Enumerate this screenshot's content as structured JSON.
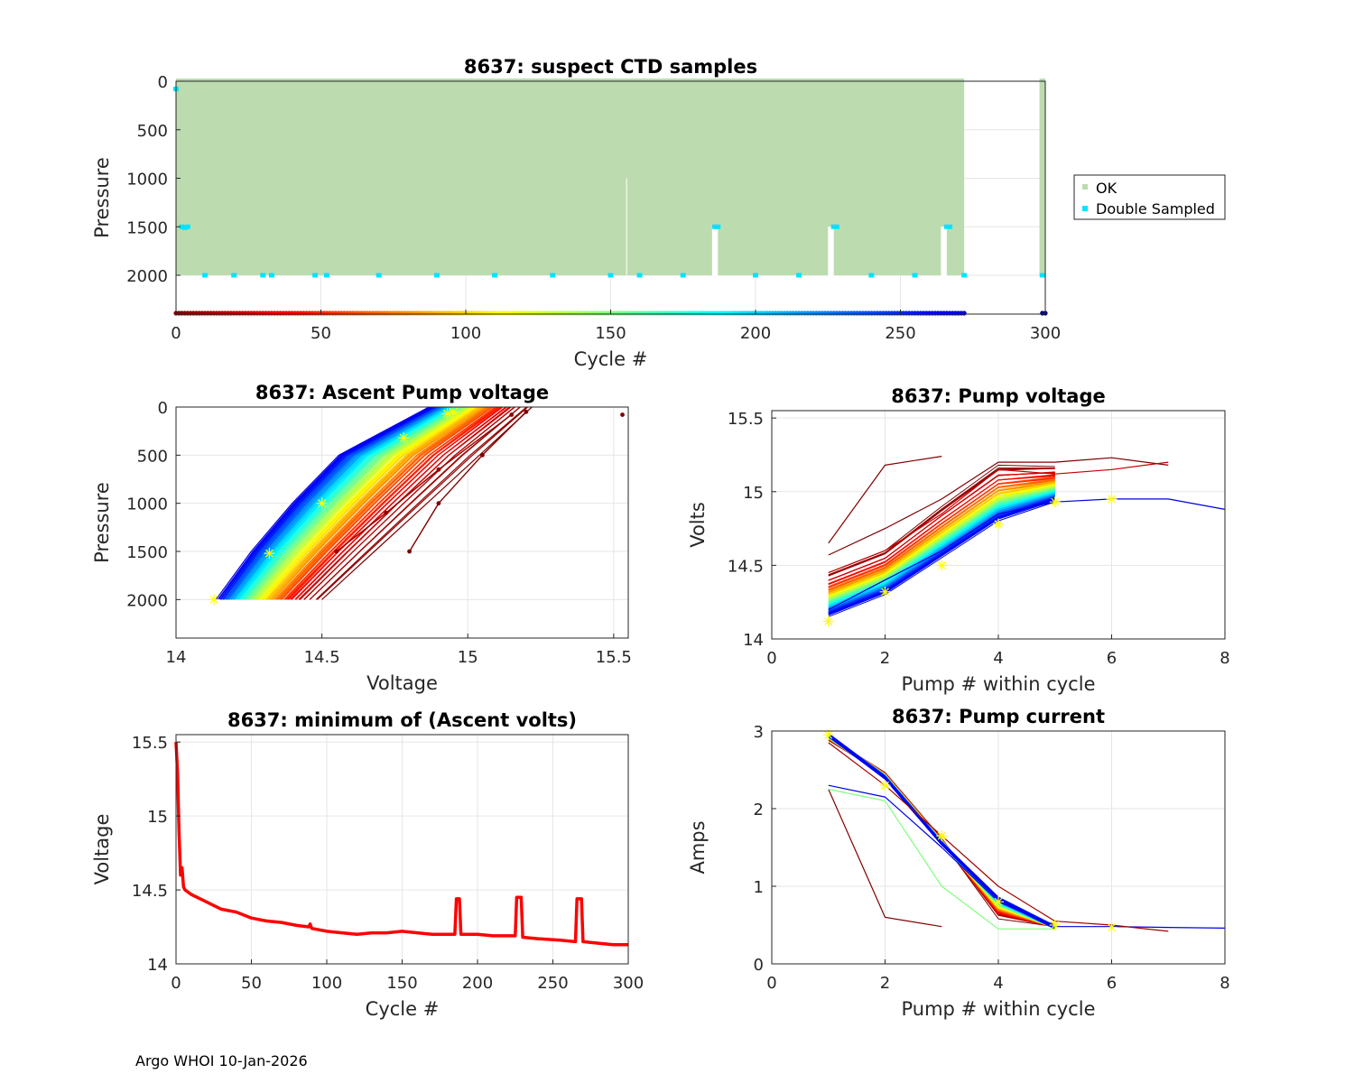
{
  "chart_data": [
    {
      "type": "scatter",
      "id": "suspect",
      "title": "8637: suspect CTD samples",
      "xlabel": "Cycle #",
      "ylabel": "Pressure",
      "xlim": [
        0,
        300
      ],
      "ylim": [
        2400,
        0
      ],
      "xticks": [
        0,
        50,
        100,
        150,
        200,
        250,
        300
      ],
      "yticks": [
        0,
        500,
        1000,
        1500,
        2000
      ],
      "grid": true,
      "legend_position": "outside-right",
      "legend": [
        "OK",
        "Double Sampled"
      ],
      "series": [
        {
          "name": "OK",
          "color": "#bcdcb0",
          "cycles": [
            0,
            272
          ],
          "cycles_extra": [
            298,
            300
          ],
          "max_pressure": 2000,
          "gaps": [
            [
              185,
              187
            ],
            [
              225,
              227
            ],
            [
              264,
              266
            ]
          ],
          "gap_pressure": [
            1500,
            2000
          ]
        },
        {
          "name": "Double Sampled",
          "color": "#00e5ff",
          "points": [
            [
              0,
              80
            ],
            [
              2,
              1500
            ],
            [
              3,
              1510
            ],
            [
              4,
              1500
            ],
            [
              10,
              2000
            ],
            [
              20,
              2000
            ],
            [
              30,
              2000
            ],
            [
              33,
              2000
            ],
            [
              48,
              2000
            ],
            [
              52,
              2000
            ],
            [
              70,
              2000
            ],
            [
              90,
              2000
            ],
            [
              110,
              2000
            ],
            [
              130,
              2000
            ],
            [
              150,
              2000
            ],
            [
              160,
              2000
            ],
            [
              175,
              2000
            ],
            [
              186,
              1500
            ],
            [
              187,
              1500
            ],
            [
              200,
              2000
            ],
            [
              215,
              2000
            ],
            [
              227,
              1500
            ],
            [
              228,
              1500
            ],
            [
              240,
              2000
            ],
            [
              255,
              2000
            ],
            [
              266,
              1500
            ],
            [
              267,
              1500
            ],
            [
              272,
              2000
            ],
            [
              299,
              2000
            ]
          ]
        }
      ],
      "cycle_colorbar": {
        "y_pressure": 2400,
        "x_range": [
          0,
          272
        ],
        "extra": [
          299,
          300
        ]
      }
    },
    {
      "type": "line",
      "id": "ascent",
      "title": "8637: Ascent Pump voltage",
      "xlabel": "Voltage",
      "ylabel": "Pressure",
      "xlim": [
        14,
        15.55
      ],
      "ylim": [
        2400,
        0
      ],
      "xticks": [
        14,
        14.5,
        15,
        15.5
      ],
      "yticks": [
        0,
        500,
        1000,
        1500,
        2000
      ],
      "grid": true,
      "colormap": "jet",
      "family": {
        "cycles": 300,
        "pressures": [
          2000,
          1500,
          1000,
          500,
          0
        ],
        "v_early": [
          14.5,
          14.68,
          14.86,
          15.04,
          15.22
        ],
        "v_late": [
          14.13,
          14.25,
          14.39,
          14.55,
          14.86
        ]
      },
      "outliers": [
        {
          "cycle": 0,
          "points": [
            [
              14.8,
              1500
            ],
            [
              14.9,
              1000
            ],
            [
              15.05,
              500
            ],
            [
              15.2,
              50
            ]
          ]
        },
        {
          "cycle": 5,
          "points": [
            [
              14.55,
              1500
            ],
            [
              14.72,
              1100
            ],
            [
              14.9,
              650
            ],
            [
              15.15,
              80
            ]
          ]
        },
        {
          "cycle": 0,
          "points": [
            [
              15.53,
              80
            ]
          ]
        }
      ],
      "markers": [
        [
          14.13,
          2000
        ],
        [
          14.32,
          1520
        ],
        [
          14.5,
          1000
        ],
        [
          14.78,
          320
        ],
        [
          14.93,
          70
        ],
        [
          14.95,
          50
        ]
      ]
    },
    {
      "type": "line",
      "id": "pumpv",
      "title": "8637: Pump voltage",
      "xlabel": "Pump # within cycle",
      "ylabel": "Volts",
      "xlim": [
        0,
        8
      ],
      "ylim": [
        14,
        15.55
      ],
      "xticks": [
        0,
        2,
        4,
        6,
        8
      ],
      "yticks": [
        14,
        14.5,
        15,
        15.5
      ],
      "grid": true,
      "colormap": "jet",
      "family": {
        "pumps": [
          1,
          2,
          3,
          4,
          5
        ],
        "v_early": [
          14.45,
          14.6,
          14.9,
          15.18,
          15.17
        ],
        "v_late": [
          14.15,
          14.3,
          14.55,
          14.8,
          14.93
        ]
      },
      "outliers": [
        {
          "cycle": 0,
          "points": [
            [
              1,
              14.65
            ],
            [
              2,
              15.18
            ],
            [
              3,
              15.24
            ]
          ]
        },
        {
          "cycle": 0,
          "points": [
            [
              1,
              14.57
            ],
            [
              2,
              14.75
            ],
            [
              3,
              14.95
            ],
            [
              4,
              15.2
            ],
            [
              5,
              15.2
            ],
            [
              6,
              15.23
            ],
            [
              7,
              15.18
            ]
          ]
        },
        {
          "cycle": 20,
          "points": [
            [
              1,
              14.45
            ],
            [
              2,
              14.6
            ],
            [
              3,
              14.85
            ],
            [
              4,
              15.15
            ],
            [
              5,
              15.12
            ],
            [
              6,
              15.15
            ],
            [
              7,
              15.2
            ]
          ]
        },
        {
          "cycle": 270,
          "points": [
            [
              1,
              14.2
            ],
            [
              2,
              14.4
            ],
            [
              3,
              14.6
            ],
            [
              4,
              14.85
            ],
            [
              5,
              14.93
            ],
            [
              6,
              14.95
            ],
            [
              7,
              14.95
            ],
            [
              8,
              14.88
            ]
          ]
        }
      ],
      "markers": [
        [
          1,
          14.12
        ],
        [
          2,
          14.32
        ],
        [
          3,
          14.5
        ],
        [
          4,
          14.78
        ],
        [
          5,
          14.93
        ],
        [
          6,
          14.95
        ]
      ]
    },
    {
      "type": "line",
      "id": "minv",
      "title": "8637: minimum of (Ascent volts)",
      "xlabel": "Cycle #",
      "ylabel": "Voltage",
      "xlim": [
        0,
        300
      ],
      "ylim": [
        14,
        15.55
      ],
      "xticks": [
        0,
        50,
        100,
        150,
        200,
        250,
        300
      ],
      "yticks": [
        14,
        14.5,
        15,
        15.5
      ],
      "grid": true,
      "color": "#ff0000",
      "series": [
        [
          0,
          15.5
        ],
        [
          1,
          15.3
        ],
        [
          2,
          14.9
        ],
        [
          3,
          14.6
        ],
        [
          4,
          14.65
        ],
        [
          5,
          14.52
        ],
        [
          6,
          14.5
        ],
        [
          10,
          14.47
        ],
        [
          20,
          14.42
        ],
        [
          30,
          14.37
        ],
        [
          40,
          14.35
        ],
        [
          50,
          14.31
        ],
        [
          60,
          14.29
        ],
        [
          70,
          14.28
        ],
        [
          80,
          14.26
        ],
        [
          88,
          14.25
        ],
        [
          89,
          14.27
        ],
        [
          90,
          14.24
        ],
        [
          100,
          14.22
        ],
        [
          110,
          14.21
        ],
        [
          120,
          14.2
        ],
        [
          130,
          14.21
        ],
        [
          140,
          14.21
        ],
        [
          150,
          14.22
        ],
        [
          160,
          14.21
        ],
        [
          170,
          14.2
        ],
        [
          183,
          14.2
        ],
        [
          185,
          14.2
        ],
        [
          186,
          14.44
        ],
        [
          188,
          14.44
        ],
        [
          189,
          14.2
        ],
        [
          200,
          14.2
        ],
        [
          210,
          14.19
        ],
        [
          225,
          14.19
        ],
        [
          226,
          14.45
        ],
        [
          229,
          14.45
        ],
        [
          230,
          14.18
        ],
        [
          240,
          14.17
        ],
        [
          255,
          14.16
        ],
        [
          265,
          14.15
        ],
        [
          266,
          14.44
        ],
        [
          269,
          14.44
        ],
        [
          270,
          14.15
        ],
        [
          280,
          14.14
        ],
        [
          290,
          14.13
        ],
        [
          300,
          14.13
        ]
      ]
    },
    {
      "type": "line",
      "id": "current",
      "title": "8637: Pump current",
      "xlabel": "Pump # within cycle",
      "ylabel": "Amps",
      "xlim": [
        0,
        8
      ],
      "ylim": [
        0,
        3
      ],
      "xticks": [
        0,
        2,
        4,
        6,
        8
      ],
      "yticks": [
        0,
        1,
        2,
        3
      ],
      "grid": true,
      "colormap": "jet",
      "family": {
        "pumps": [
          1,
          2,
          3,
          4,
          5
        ],
        "a_early": [
          2.9,
          2.45,
          1.6,
          0.6,
          0.5
        ],
        "a_late": [
          2.95,
          2.4,
          1.55,
          0.85,
          0.47
        ]
      },
      "outliers": [
        {
          "cycle": 0,
          "points": [
            [
              1,
              2.25
            ],
            [
              2,
              0.6
            ],
            [
              3,
              0.48
            ]
          ]
        },
        {
          "cycle": 270,
          "points": [
            [
              1,
              2.3
            ],
            [
              2,
              2.15
            ],
            [
              3,
              1.5
            ],
            [
              4,
              0.8
            ],
            [
              5,
              0.48
            ],
            [
              6,
              0.48
            ],
            [
              7,
              0.47
            ],
            [
              8,
              0.46
            ]
          ]
        },
        {
          "cycle": 150,
          "points": [
            [
              1,
              2.25
            ],
            [
              2,
              2.1
            ],
            [
              3,
              1.0
            ],
            [
              4,
              0.45
            ],
            [
              5,
              0.45
            ]
          ]
        },
        {
          "cycle": 10,
          "points": [
            [
              1,
              2.85
            ],
            [
              2,
              2.3
            ],
            [
              3,
              1.65
            ],
            [
              4,
              1.0
            ],
            [
              5,
              0.55
            ],
            [
              6,
              0.5
            ],
            [
              7,
              0.42
            ]
          ]
        }
      ],
      "markers": [
        [
          1,
          2.95
        ],
        [
          2,
          2.3
        ],
        [
          3,
          1.65
        ],
        [
          4,
          0.8
        ],
        [
          5,
          0.5
        ],
        [
          6,
          0.47
        ]
      ]
    }
  ],
  "footer": "Argo WHOI 10-Jan-2026"
}
